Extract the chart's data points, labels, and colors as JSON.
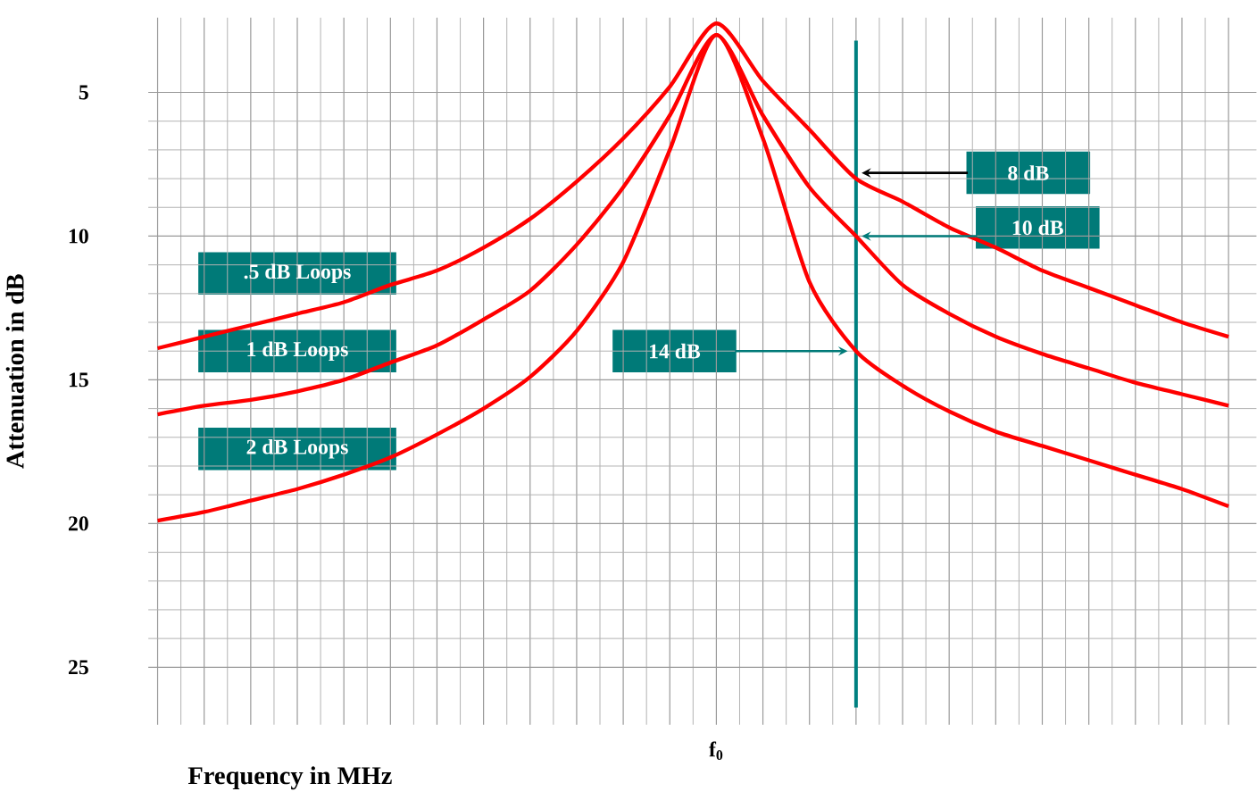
{
  "chart_data": {
    "type": "line",
    "xlabel": "Frequency in MHz",
    "ylabel": "Attenuation in dB",
    "categories": [
      null,
      null,
      null,
      null,
      null,
      null,
      null,
      null,
      null,
      null,
      null,
      null,
      "f$_{0}$",
      null,
      null,
      null,
      null,
      null,
      null,
      null,
      null,
      null,
      null,
      null
    ],
    "series": [
      {
        "name": ".5 dB Loops",
        "color": "#ff0000",
        "values": [
          13.9,
          13.5,
          13.1,
          12.7,
          12.3,
          11.7,
          11.2,
          10.4,
          9.4,
          8.1,
          6.6,
          4.8,
          2.6,
          4.6,
          6.3,
          8.0,
          8.8,
          9.7,
          10.4,
          11.2,
          11.8,
          12.4,
          13.0,
          13.5
        ]
      },
      {
        "name": "1 dB Loops",
        "color": "#ff0000",
        "values": [
          16.2,
          15.9,
          15.7,
          15.4,
          15.0,
          14.4,
          13.8,
          12.9,
          11.9,
          10.3,
          8.3,
          5.8,
          3.0,
          5.8,
          8.3,
          10.0,
          11.7,
          12.7,
          13.5,
          14.1,
          14.6,
          15.1,
          15.5,
          15.9
        ]
      },
      {
        "name": "2 dB Loops",
        "color": "#ff0000",
        "values": [
          19.9,
          19.6,
          19.2,
          18.8,
          18.3,
          17.7,
          16.9,
          16.0,
          14.9,
          13.3,
          10.9,
          7.0,
          3.0,
          6.6,
          11.6,
          14.0,
          15.2,
          16.1,
          16.8,
          17.3,
          17.8,
          18.3,
          18.8,
          19.4
        ]
      }
    ],
    "ylim": [
      27,
      2.4
    ],
    "yticks": [
      5,
      10,
      15,
      20,
      25
    ],
    "grid": true,
    "marker": "none",
    "line_style": "solid",
    "annotations": [
      "8 dB",
      "10 dB",
      "14 dB"
    ]
  }
}
